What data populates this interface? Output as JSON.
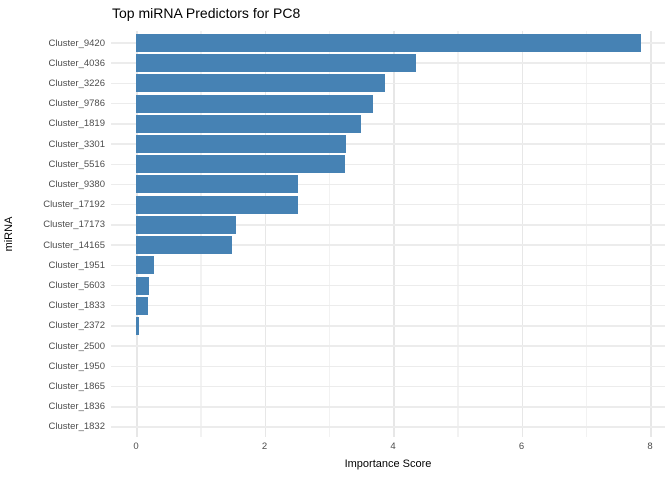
{
  "chart_data": {
    "type": "bar",
    "orientation": "horizontal",
    "title": "Top miRNA Predictors for PC8",
    "xlabel": "Importance Score",
    "ylabel": "miRNA",
    "categories": [
      "Cluster_9420",
      "Cluster_4036",
      "Cluster_3226",
      "Cluster_9786",
      "Cluster_1819",
      "Cluster_3301",
      "Cluster_5516",
      "Cluster_9380",
      "Cluster_17192",
      "Cluster_17173",
      "Cluster_14165",
      "Cluster_1951",
      "Cluster_5603",
      "Cluster_1833",
      "Cluster_2372",
      "Cluster_2500",
      "Cluster_1950",
      "Cluster_1865",
      "Cluster_1836",
      "Cluster_1832"
    ],
    "values": [
      7.86,
      4.36,
      3.88,
      3.69,
      3.5,
      3.27,
      3.25,
      2.52,
      2.52,
      1.56,
      1.49,
      0.28,
      0.2,
      0.19,
      0.05,
      0,
      0,
      0,
      0,
      0
    ],
    "xlim": [
      -0.39,
      8.23
    ],
    "x_major_ticks": [
      0,
      2,
      4,
      6,
      8
    ],
    "x_minor_ticks": [
      1,
      3,
      5,
      7
    ],
    "grid": true,
    "legend": null,
    "colors": {
      "bar": "#4682B4",
      "grid_major": "#E7E7E7",
      "grid_minor": "#F2F2F2",
      "grid_horizontal": "#ECECEC",
      "tick_label": "#4D4D4D",
      "axis_title": "#000000",
      "title": "#000000",
      "background": "#FFFFFF"
    }
  }
}
